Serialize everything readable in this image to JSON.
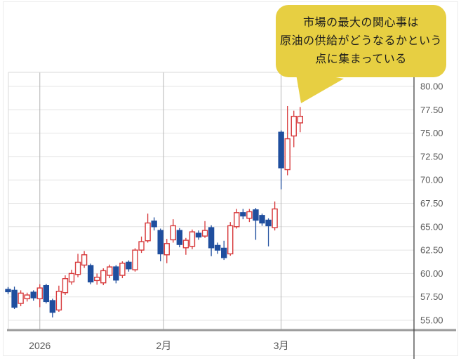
{
  "annotation_bubble": {
    "lines": [
      "市場の最大の関心事は",
      "原油の供給がどうなるかという",
      "点に集まっている"
    ],
    "bg_color": "#e7cf42",
    "text_color": "#1c1c1c"
  },
  "chart_data": {
    "type": "candlestick",
    "title": "",
    "xlabel": "",
    "ylabel": "",
    "y_axis_side": "right",
    "grid": true,
    "y_tick_labels": [
      "80.00",
      "77.50",
      "75.00",
      "72.50",
      "70.00",
      "67.50",
      "65.00",
      "62.50",
      "60.00",
      "57.50",
      "55.00"
    ],
    "ylim": [
      53.9,
      81.5
    ],
    "x_tick_labels": [
      {
        "label": "2026",
        "at_index": 5
      },
      {
        "label": "2月",
        "at_index": 24.5
      },
      {
        "label": "3月",
        "at_index": 43
      }
    ],
    "colors": {
      "bullish": "#d7393b",
      "bearish": "#1f4e9e",
      "hgrid": "#e4e4e4",
      "vgrid": "#b5b5b5",
      "axis_light": "#d9d9d9",
      "axis_dark": "#454545",
      "axis_bottom": "#9a9a9a",
      "label": "#595959"
    },
    "ohlc_order": "open,high,low,close",
    "candles": [
      [
        58.3,
        58.55,
        57.8,
        58.05
      ],
      [
        58.2,
        58.6,
        56.2,
        56.4
      ],
      [
        56.8,
        58.2,
        56.5,
        57.9
      ],
      [
        57.3,
        57.95,
        57.0,
        57.7
      ],
      [
        58.0,
        58.2,
        57.1,
        57.4
      ],
      [
        57.3,
        58.85,
        56.4,
        58.45
      ],
      [
        58.7,
        58.9,
        56.8,
        57.0
      ],
      [
        57.1,
        57.3,
        55.3,
        55.85
      ],
      [
        56.1,
        58.7,
        55.9,
        58.1
      ],
      [
        57.95,
        59.8,
        57.7,
        59.45
      ],
      [
        59.1,
        60.4,
        58.8,
        60.0
      ],
      [
        59.9,
        62.1,
        59.6,
        61.2
      ],
      [
        60.9,
        62.4,
        60.6,
        62.0
      ],
      [
        60.85,
        61.05,
        58.85,
        59.1
      ],
      [
        59.25,
        60.0,
        58.8,
        59.6
      ],
      [
        59.0,
        60.55,
        58.75,
        60.3
      ],
      [
        59.8,
        60.95,
        59.5,
        60.7
      ],
      [
        60.7,
        60.9,
        58.95,
        59.3
      ],
      [
        59.8,
        61.3,
        59.5,
        61.1
      ],
      [
        61.2,
        61.4,
        60.2,
        60.5
      ],
      [
        60.4,
        62.7,
        60.2,
        62.5
      ],
      [
        62.5,
        63.95,
        62.2,
        63.4
      ],
      [
        63.5,
        66.4,
        63.3,
        65.4
      ],
      [
        65.6,
        66.0,
        64.6,
        65.0
      ],
      [
        64.6,
        64.8,
        61.3,
        62.1
      ],
      [
        62.0,
        63.7,
        61.1,
        63.2
      ],
      [
        63.6,
        65.8,
        63.3,
        65.1
      ],
      [
        64.6,
        64.85,
        62.8,
        63.1
      ],
      [
        62.75,
        63.8,
        62.0,
        63.55
      ],
      [
        62.9,
        64.7,
        62.6,
        64.45
      ],
      [
        64.3,
        64.6,
        63.6,
        63.9
      ],
      [
        64.0,
        65.6,
        63.8,
        64.6
      ],
      [
        64.9,
        65.15,
        61.85,
        62.75
      ],
      [
        63.0,
        63.3,
        62.1,
        62.5
      ],
      [
        62.7,
        63.5,
        61.45,
        61.7
      ],
      [
        62.1,
        65.5,
        61.9,
        65.1
      ],
      [
        65.0,
        66.9,
        64.8,
        66.5
      ],
      [
        66.5,
        66.9,
        65.8,
        66.15
      ],
      [
        65.9,
        66.9,
        65.5,
        66.6
      ],
      [
        66.8,
        67.0,
        63.6,
        65.7
      ],
      [
        66.2,
        66.4,
        65.1,
        65.4
      ],
      [
        65.7,
        65.9,
        62.9,
        65.1
      ],
      [
        64.9,
        67.7,
        64.6,
        66.9
      ],
      [
        75.1,
        75.3,
        69.0,
        71.3
      ],
      [
        71.1,
        77.9,
        70.5,
        74.4
      ],
      [
        74.7,
        77.4,
        73.5,
        76.8
      ],
      [
        76.1,
        77.8,
        75.1,
        76.8
      ]
    ]
  }
}
